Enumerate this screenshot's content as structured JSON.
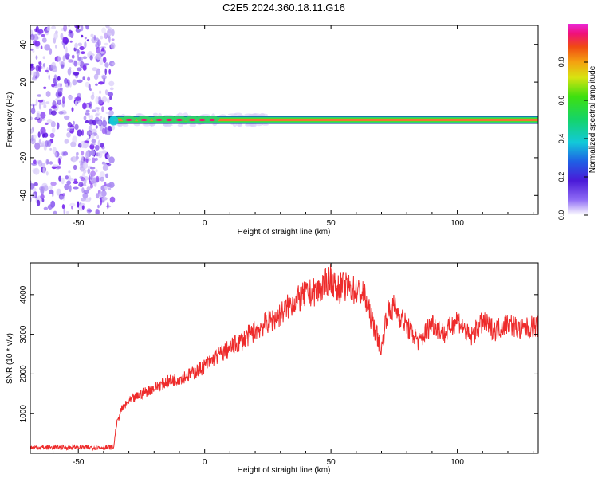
{
  "title": "C2E5.2024.360.18.11.G16",
  "colors": {
    "snr_line": "#ee2b2b",
    "spectrum_line_core": "#e8005a",
    "noise": "#7b2cf0",
    "axis": "#000000",
    "background": "#ffffff"
  },
  "chart_data": [
    {
      "type": "heatmap",
      "xlabel": "Height of straight line (km)",
      "ylabel": "Frequency (Hz)",
      "xlim": [
        -69,
        132
      ],
      "ylim": [
        -50,
        50
      ],
      "xticks": [
        -50,
        0,
        50,
        100
      ],
      "yticks": [
        -40,
        -20,
        0,
        20,
        40
      ],
      "grid": false,
      "noise_region_x": [
        -69,
        -38
      ],
      "signal_frequency": 0,
      "signal_start_x": -38,
      "colorbar": {
        "label": "Normalized spectral amplitude",
        "range": [
          0,
          1
        ],
        "ticks": [
          0.0,
          0.2,
          0.4,
          0.6,
          0.8
        ],
        "tick_labels": [
          "0.0",
          "0.2",
          "0.4",
          "0.6",
          "0.8"
        ]
      }
    },
    {
      "type": "line",
      "xlabel": "Height of straight line (km)",
      "ylabel": "SNR (10 * v/v)",
      "xlim": [
        -69,
        132
      ],
      "ylim": [
        0,
        4800
      ],
      "xticks": [
        -50,
        0,
        50,
        100
      ],
      "yticks": [
        1000,
        2000,
        3000,
        4000
      ],
      "grid": false,
      "series": [
        {
          "x": [
            -69,
            -60,
            -50,
            -40,
            -36,
            -35,
            -33,
            -30,
            -25,
            -20,
            -15,
            -10,
            -5,
            0,
            5,
            10,
            15,
            20,
            25,
            28,
            30,
            33,
            35,
            40,
            45,
            48,
            50,
            52,
            55,
            60,
            63,
            65,
            68,
            70,
            72,
            75,
            80,
            85,
            90,
            95,
            100,
            105,
            110,
            115,
            120,
            125,
            130,
            132
          ],
          "y": [
            150,
            150,
            150,
            150,
            150,
            700,
            1100,
            1300,
            1500,
            1650,
            1800,
            1900,
            2000,
            2200,
            2450,
            2650,
            2850,
            3100,
            3300,
            3400,
            3500,
            3700,
            3800,
            4000,
            4100,
            4300,
            4450,
            4150,
            4200,
            4100,
            4000,
            3600,
            3000,
            2600,
            3500,
            3700,
            3200,
            2800,
            3300,
            3000,
            3400,
            2900,
            3300,
            3100,
            3300,
            3100,
            3200,
            3200
          ]
        }
      ]
    }
  ]
}
